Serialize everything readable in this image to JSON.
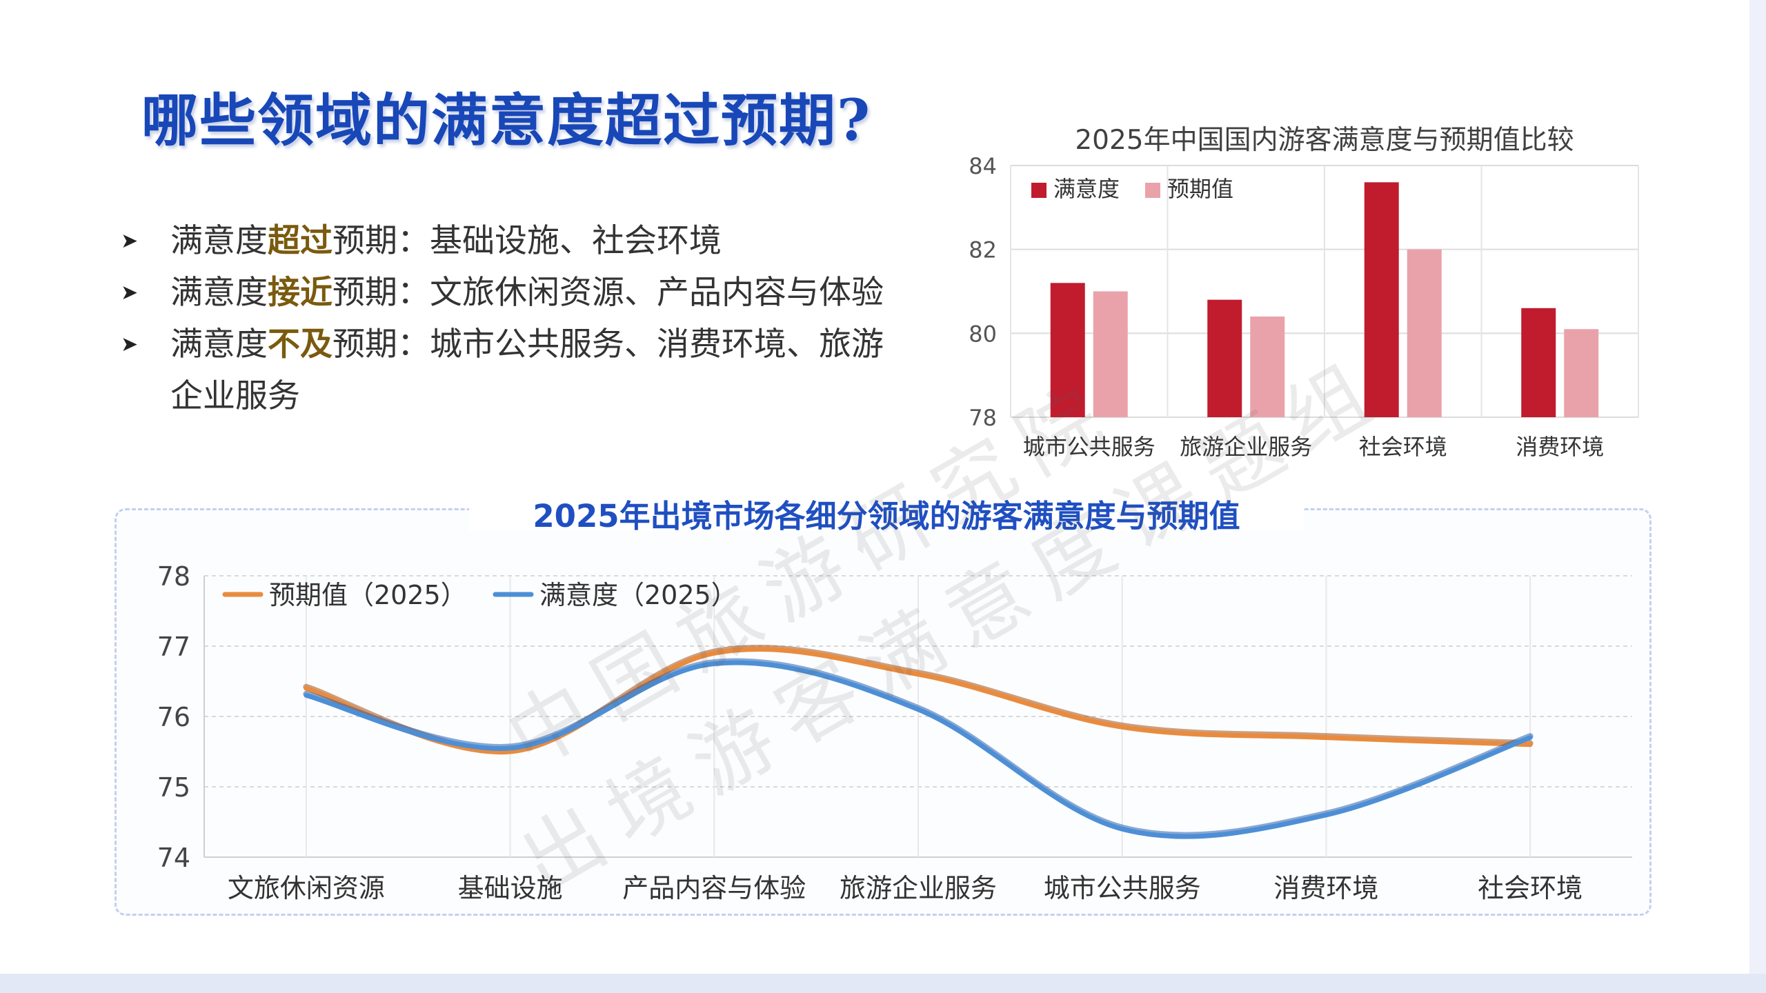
{
  "page": {
    "title": "哪些领域的满意度超过预期?",
    "bullets": [
      {
        "prefix": "满意度",
        "keyword": "超过",
        "suffix": "预期：基础设施、社会环境"
      },
      {
        "prefix": "满意度",
        "keyword": "接近",
        "suffix": "预期：文旅休闲资源、产品内容与体验"
      },
      {
        "prefix": "满意度",
        "keyword": "不及",
        "suffix": "预期：城市公共服务、消费环境、旅游企业服务"
      }
    ],
    "bullet_marker": "➤"
  },
  "watermark": {
    "line1": "中国旅游研究院",
    "line2": "出境游客满意度课题组"
  },
  "colors": {
    "title": "#1847b8",
    "keyword": "#7a5a0e",
    "sat_bar": "#c01c2e",
    "exp_bar": "#eaa2aa",
    "exp_line": "#e98b3e",
    "sat_line": "#4d8fd6",
    "chart2_title": "#1f4fc1"
  },
  "chart_data": [
    {
      "type": "bar",
      "title": "2025年中国国内游客满意度与预期值比较",
      "categories": [
        "城市公共服务",
        "旅游企业服务",
        "社会环境",
        "消费环境"
      ],
      "series": [
        {
          "name": "满意度",
          "values": [
            81.2,
            80.8,
            83.6,
            80.6
          ]
        },
        {
          "name": "预期值",
          "values": [
            81.0,
            80.4,
            82.0,
            80.1
          ]
        }
      ],
      "ylim": [
        78,
        84
      ],
      "yticks": [
        "78",
        "80",
        "82",
        "84"
      ],
      "legend": "top-left",
      "grid": true
    },
    {
      "type": "line",
      "title": "2025年出境市场各细分领域的游客满意度与预期值",
      "categories": [
        "文旅休闲资源",
        "基础设施",
        "产品内容与体验",
        "旅游企业服务",
        "城市公共服务",
        "消费环境",
        "社会环境"
      ],
      "series": [
        {
          "name": "预期值（2025）",
          "values": [
            76.4,
            75.5,
            76.9,
            76.6,
            75.85,
            75.7,
            75.6
          ]
        },
        {
          "name": "满意度（2025）",
          "values": [
            76.3,
            75.55,
            76.75,
            76.1,
            74.4,
            74.6,
            75.7
          ]
        }
      ],
      "ylim": [
        74,
        78
      ],
      "yticks": [
        "74",
        "75",
        "76",
        "77",
        "78"
      ],
      "legend": "top-left",
      "grid": true
    }
  ]
}
